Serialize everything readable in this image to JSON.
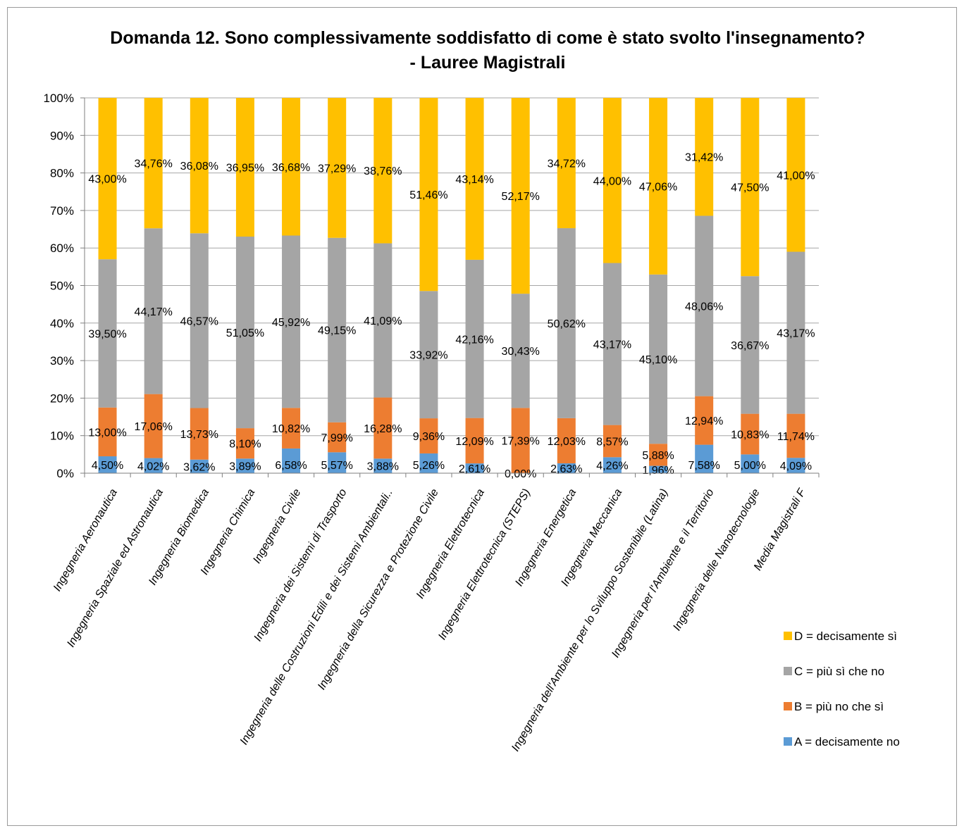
{
  "chart_data": {
    "type": "bar",
    "stacked": true,
    "title": "Domanda 12. Sono complessivamente soddisfatto di come è stato svolto l'insegnamento?",
    "subtitle": "- Lauree Magistrali",
    "ylim": [
      0,
      100
    ],
    "yticks": [
      "0%",
      "10%",
      "20%",
      "30%",
      "40%",
      "50%",
      "60%",
      "70%",
      "80%",
      "90%",
      "100%"
    ],
    "grid": true,
    "legend_position": "right",
    "categories": [
      "Ingegneria Aeronautica",
      "Ingegneria Spaziale ed Astronautica",
      "Ingegneria Biomedica",
      "Ingegneria Chimica",
      "Ingegneria Civile",
      "Ingegneria dei Sistemi di Trasporto",
      "Ingegneria delle Costruzioni Edili e dei Sistemi Ambientali..",
      "Ingegneria della Sicurezza e Protezione Civile",
      "Ingegneria Elettrotecnica",
      "Ingegneria Elettrotecnica (STEPS)",
      "Ingegneria Energetica",
      "Ingegneria Meccanica",
      "Ingegneria dell'Ambiente per lo Sviluppo Sostenibile (Latina)",
      "Ingegneria per l'Ambiente e il Territorio",
      "Ingegneria delle Nanotecnologie",
      "Media Magistrali F"
    ],
    "series": [
      {
        "name": "A = decisamente no",
        "color": "#5b9bd5",
        "values": [
          4.5,
          4.02,
          3.62,
          3.89,
          6.58,
          5.57,
          3.88,
          5.26,
          2.61,
          0.0,
          2.63,
          4.26,
          1.96,
          7.58,
          5.0,
          4.09
        ],
        "labels": [
          "4,50%",
          "4,02%",
          "3,62%",
          "3,89%",
          "6,58%",
          "5,57%",
          "3,88%",
          "5,26%",
          "2,61%",
          "0,00%",
          "2,63%",
          "4,26%",
          "1,96%",
          "7,58%",
          "5,00%",
          "4,09%"
        ]
      },
      {
        "name": "B = più no che sì",
        "color": "#ed7d31",
        "values": [
          13.0,
          17.06,
          13.73,
          8.1,
          10.82,
          7.99,
          16.28,
          9.36,
          12.09,
          17.39,
          12.03,
          8.57,
          5.88,
          12.94,
          10.83,
          11.74
        ],
        "labels": [
          "13,00%",
          "17,06%",
          "13,73%",
          "8,10%",
          "10,82%",
          "7,99%",
          "16,28%",
          "9,36%",
          "12,09%",
          "17,39%",
          "12,03%",
          "8,57%",
          "5,88%",
          "12,94%",
          "10,83%",
          "11,74%"
        ]
      },
      {
        "name": "C = più sì che no",
        "color": "#a5a5a5",
        "values": [
          39.5,
          44.17,
          46.57,
          51.05,
          45.92,
          49.15,
          41.09,
          33.92,
          42.16,
          30.43,
          50.62,
          43.17,
          45.1,
          48.06,
          36.67,
          43.17
        ],
        "labels": [
          "39,50%",
          "44,17%",
          "46,57%",
          "51,05%",
          "45,92%",
          "49,15%",
          "41,09%",
          "33,92%",
          "42,16%",
          "30,43%",
          "50,62%",
          "43,17%",
          "45,10%",
          "48,06%",
          "36,67%",
          "43,17%"
        ]
      },
      {
        "name": "D = decisamente sì",
        "color": "#ffc000",
        "values": [
          43.0,
          34.76,
          36.08,
          36.95,
          36.68,
          37.29,
          38.76,
          51.46,
          43.14,
          52.17,
          34.72,
          44.0,
          47.06,
          31.42,
          47.5,
          41.0
        ],
        "labels": [
          "43,00%",
          "34,76%",
          "36,08%",
          "36,95%",
          "36,68%",
          "37,29%",
          "38,76%",
          "51,46%",
          "43,14%",
          "52,17%",
          "34,72%",
          "44,00%",
          "47,06%",
          "31,42%",
          "47,50%",
          "41,00%"
        ]
      }
    ],
    "legend_order": [
      "D = decisamente sì",
      "C = più sì che no",
      "B = più no che sì",
      "A = decisamente no"
    ],
    "gridline_color": "#a6a6a6"
  }
}
